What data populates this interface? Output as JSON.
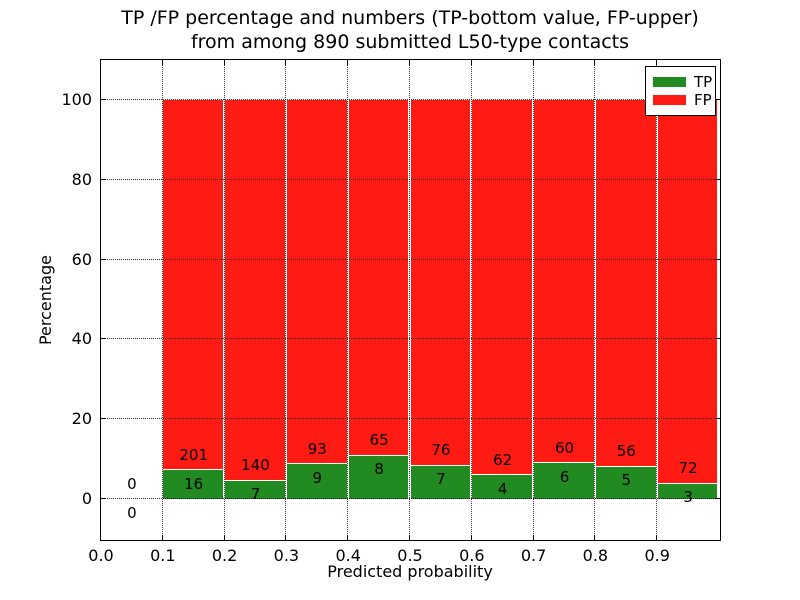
{
  "title": {
    "line1": "TP /FP percentage and numbers (TP-bottom value, FP-upper)",
    "line2": "from among 890 submitted L50-type contacts"
  },
  "axes": {
    "xlabel": "Predicted probability",
    "ylabel": "Percentage"
  },
  "legend": {
    "entries": [
      {
        "label": "TP",
        "color": "#218a21"
      },
      {
        "label": "FP",
        "color": "#fe1b14"
      }
    ]
  },
  "colors": {
    "tp": "#218a21",
    "fp": "#fe1b14",
    "background": "#ffffff",
    "grid": "#333333"
  },
  "chart_data": {
    "type": "bar",
    "stacked": true,
    "title": "TP /FP percentage and numbers (TP-bottom value, FP-upper) from among 890 submitted L50-type contacts",
    "xlabel": "Predicted probability",
    "ylabel": "Percentage",
    "total_submitted": 890,
    "contact_type": "L50",
    "xlim": [
      0.0,
      1.0
    ],
    "ylim": [
      -10,
      110
    ],
    "xticks": [
      "0.0",
      "0.1",
      "0.2",
      "0.3",
      "0.4",
      "0.5",
      "0.6",
      "0.7",
      "0.8",
      "0.9"
    ],
    "yticks": [
      0,
      20,
      40,
      60,
      80,
      100
    ],
    "grid": true,
    "grid_style": "dotted",
    "legend_position": "upper right",
    "series": [
      {
        "name": "TP",
        "color": "#218a21"
      },
      {
        "name": "FP",
        "color": "#fe1b14"
      }
    ],
    "bins": [
      {
        "range": [
          0.0,
          0.1
        ],
        "tp_count": 0,
        "fp_count": 0,
        "tp_pct": 0,
        "fp_pct": 0
      },
      {
        "range": [
          0.1,
          0.2
        ],
        "tp_count": 16,
        "fp_count": 201,
        "tp_pct": 7.37,
        "fp_pct": 92.63
      },
      {
        "range": [
          0.2,
          0.3
        ],
        "tp_count": 7,
        "fp_count": 140,
        "tp_pct": 4.76,
        "fp_pct": 95.24
      },
      {
        "range": [
          0.3,
          0.4
        ],
        "tp_count": 9,
        "fp_count": 93,
        "tp_pct": 8.82,
        "fp_pct": 91.18
      },
      {
        "range": [
          0.4,
          0.5
        ],
        "tp_count": 8,
        "fp_count": 65,
        "tp_pct": 10.96,
        "fp_pct": 89.04
      },
      {
        "range": [
          0.5,
          0.6
        ],
        "tp_count": 7,
        "fp_count": 76,
        "tp_pct": 8.43,
        "fp_pct": 91.57
      },
      {
        "range": [
          0.6,
          0.7
        ],
        "tp_count": 4,
        "fp_count": 62,
        "tp_pct": 6.06,
        "fp_pct": 93.94
      },
      {
        "range": [
          0.7,
          0.8
        ],
        "tp_count": 6,
        "fp_count": 60,
        "tp_pct": 9.09,
        "fp_pct": 90.91
      },
      {
        "range": [
          0.8,
          0.9
        ],
        "tp_count": 5,
        "fp_count": 56,
        "tp_pct": 8.2,
        "fp_pct": 91.8
      },
      {
        "range": [
          0.9,
          1.0
        ],
        "tp_count": 3,
        "fp_count": 72,
        "tp_pct": 4.0,
        "fp_pct": 96.0
      }
    ]
  }
}
